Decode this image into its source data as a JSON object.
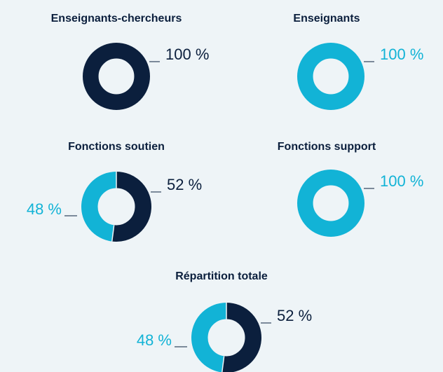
{
  "chart_data": [
    {
      "type": "donut",
      "title": "Enseignants-chercheurs",
      "values": [
        100
      ],
      "value_labels": [
        "100 %"
      ],
      "colors": [
        "#0b1f3d"
      ]
    },
    {
      "type": "donut",
      "title": "Enseignants",
      "values": [
        100
      ],
      "value_labels": [
        "100 %"
      ],
      "colors": [
        "#12b3d6"
      ]
    },
    {
      "type": "donut",
      "title": "Fonctions soutien",
      "values": [
        52,
        48
      ],
      "value_labels": [
        "52 %",
        "48 %"
      ],
      "colors": [
        "#0b1f3d",
        "#12b3d6"
      ]
    },
    {
      "type": "donut",
      "title": "Fonctions support",
      "values": [
        100
      ],
      "value_labels": [
        "100 %"
      ],
      "colors": [
        "#12b3d6"
      ]
    },
    {
      "type": "donut",
      "title": "Répartition totale",
      "values": [
        52,
        48
      ],
      "value_labels": [
        "52 %",
        "48 %"
      ],
      "colors": [
        "#0b1f3d",
        "#12b3d6"
      ]
    }
  ]
}
